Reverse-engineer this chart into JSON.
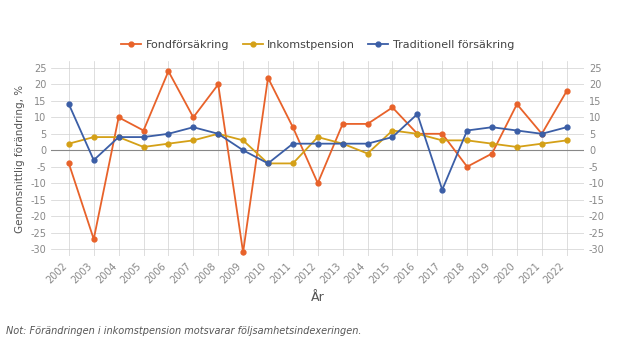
{
  "years": [
    2002,
    2003,
    2004,
    2005,
    2006,
    2007,
    2008,
    2009,
    2010,
    2011,
    2012,
    2013,
    2014,
    2015,
    2016,
    2017,
    2018,
    2019,
    2020,
    2021,
    2022
  ],
  "fondforsakring": [
    -4,
    -27,
    10,
    6,
    24,
    10,
    20,
    -31,
    22,
    7,
    -10,
    8,
    8,
    13,
    5,
    5,
    -5,
    -1,
    14,
    5,
    18
  ],
  "inkomstpension": [
    2,
    4,
    4,
    1,
    2,
    3,
    5,
    3,
    -4,
    -4,
    4,
    2,
    -1,
    6,
    5,
    3,
    3,
    2,
    1,
    2,
    3
  ],
  "traditionell_forsakring": [
    14,
    -3,
    4,
    4,
    5,
    7,
    5,
    0,
    -4,
    2,
    2,
    2,
    2,
    4,
    11,
    -12,
    6,
    7,
    6,
    5,
    7
  ],
  "fondforsakring_color": "#E8622A",
  "inkomstpension_color": "#D4A017",
  "traditionell_color": "#3B5EA6",
  "background_color": "#ffffff",
  "plot_bg_color": "#ffffff",
  "ylabel": "Genomsnittlig förändring, %",
  "xlabel": "År",
  "legend_inkomstpension": "Inkomstpension",
  "legend_traditionell": "Traditionell försäkring",
  "note": "Not: Förändringen i inkomstpension motsvarar följsamhetsindexeringen.",
  "ylim_min": -32,
  "ylim_max": 27,
  "yticks": [
    -30,
    -25,
    -20,
    -15,
    -10,
    -5,
    0,
    5,
    10,
    15,
    20,
    25
  ],
  "figsize": [
    6.2,
    3.39
  ],
  "dpi": 100,
  "grid_color": "#d0d0d0",
  "zero_line_color": "#888888",
  "tick_color": "#888888",
  "label_color": "#555555"
}
